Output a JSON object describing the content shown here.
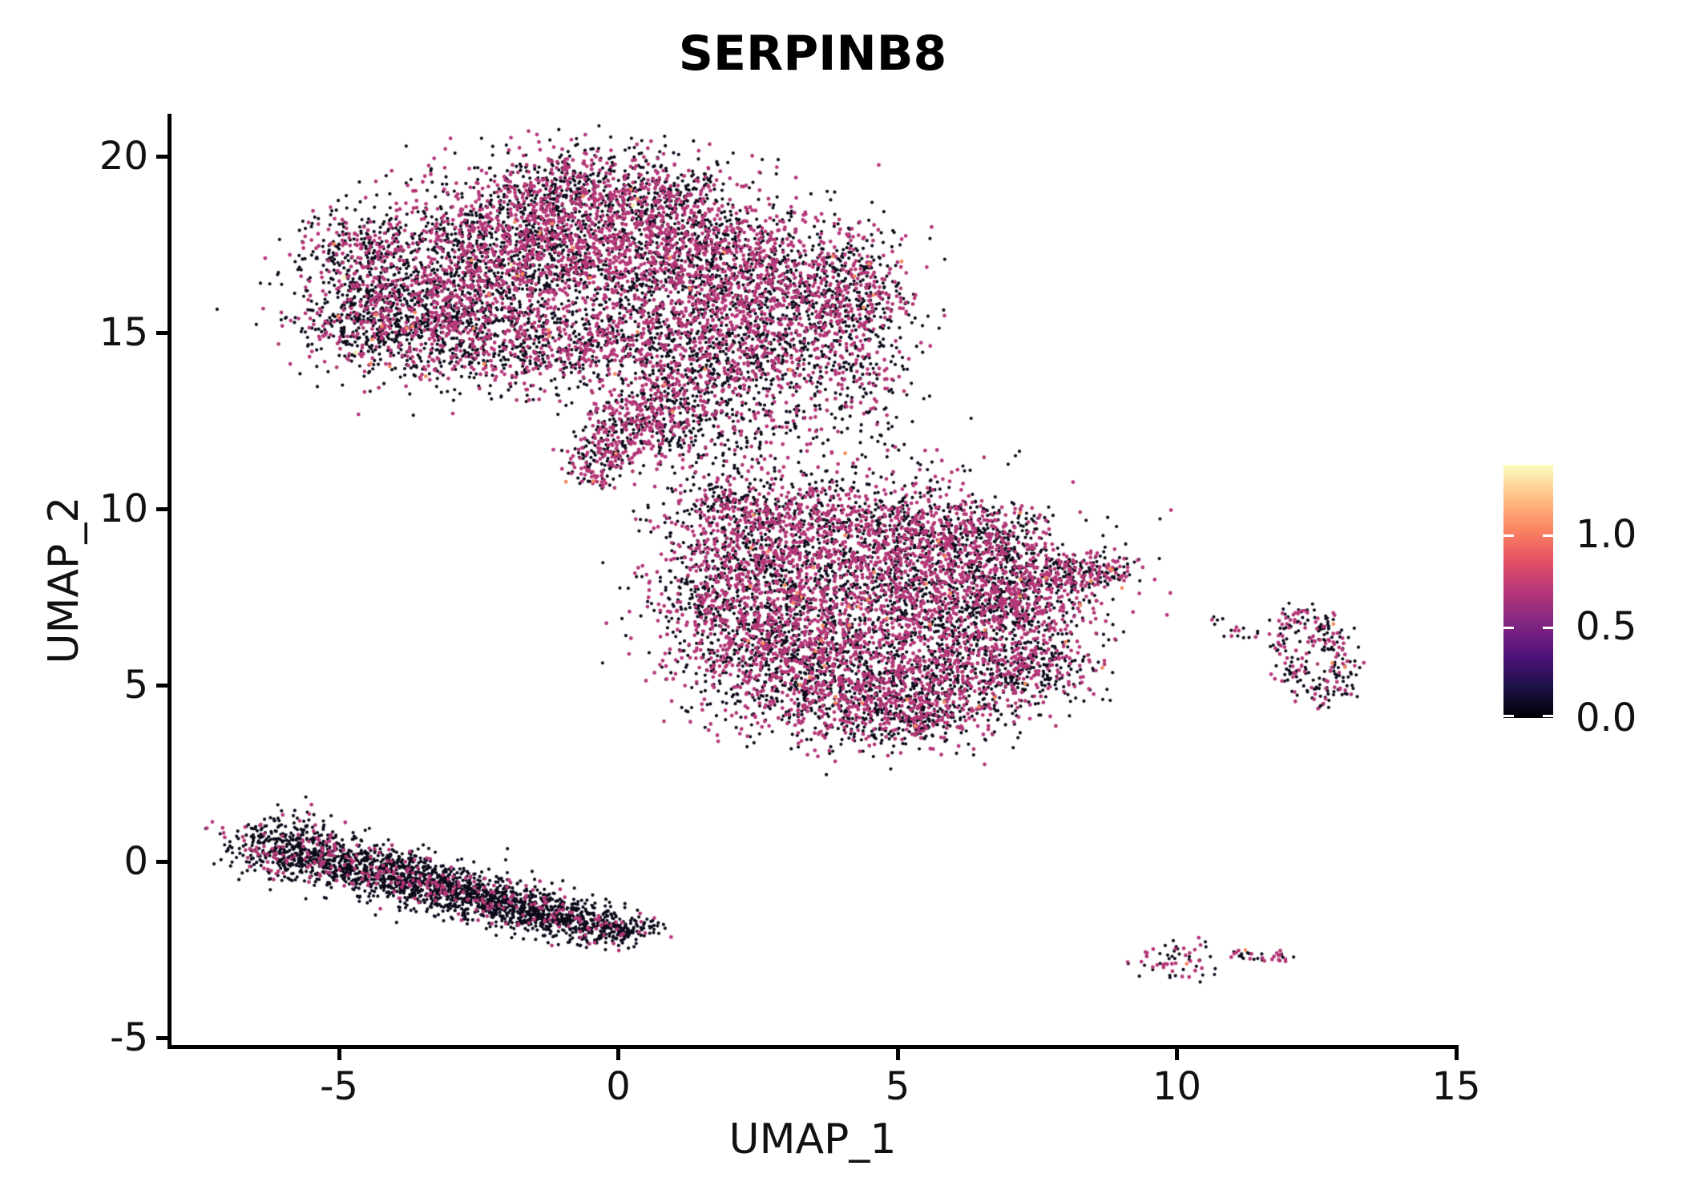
{
  "chart_data": {
    "type": "scatter",
    "title": "SERPINB8",
    "xlabel": "UMAP_1",
    "ylabel": "UMAP_2",
    "xlim": [
      -8.05,
      15.05
    ],
    "ylim": [
      -5.25,
      21.2
    ],
    "grid": false,
    "x_ticks": [
      -5,
      0,
      5,
      10,
      15
    ],
    "x_tick_labels": [
      "-5",
      "0",
      "5",
      "10",
      "15"
    ],
    "y_ticks": [
      20,
      15,
      10,
      5,
      0,
      -5
    ],
    "y_tick_labels": [
      "20",
      "15",
      "10",
      "5",
      "0",
      "-5"
    ],
    "point_colors": {
      "zero": "#0d0a1a",
      "mid": "#b53778",
      "high": "#f5895c",
      "top": "#f8f0b0"
    },
    "colorbar": {
      "colormap": "magma",
      "vmin": 0.0,
      "vmax": 1.38,
      "tick_values": [
        1.0,
        0.5,
        0.0
      ],
      "tick_labels": [
        "1.0",
        "0.5",
        "0.0"
      ],
      "gradient_stops": [
        "#000004",
        "#1d1147",
        "#51127c",
        "#822681",
        "#b63679",
        "#e65164",
        "#fb8761",
        "#fec287",
        "#fcfdbf"
      ]
    },
    "blob_format": [
      "x",
      "y",
      "sd_x",
      "sd_y",
      "n",
      "frac_mid",
      "frac_high",
      "frac_top"
    ],
    "clusters": [
      {
        "name": "upper-left-lobe",
        "blobs": [
          [
            -3.4,
            16.3,
            1.05,
            1.15,
            950,
            0.42,
            0.006,
            0.001
          ],
          [
            -1.8,
            17.5,
            1.0,
            1.05,
            950,
            0.48,
            0.006,
            0.001
          ],
          [
            -0.2,
            17.6,
            0.95,
            1.0,
            850,
            0.5,
            0.006,
            0.001
          ],
          [
            1.4,
            17.0,
            0.9,
            1.1,
            800,
            0.5,
            0.006,
            0.001
          ],
          [
            2.9,
            16.3,
            0.9,
            1.1,
            750,
            0.48,
            0.006,
            0.001
          ],
          [
            4.2,
            16.1,
            0.55,
            0.85,
            420,
            0.45,
            0.006,
            0
          ],
          [
            -4.4,
            15.4,
            0.7,
            0.75,
            420,
            0.3,
            0.01,
            0.003
          ],
          [
            -2.6,
            14.9,
            1.0,
            0.7,
            520,
            0.35,
            0.01,
            0.003
          ],
          [
            -0.6,
            14.6,
            0.9,
            0.65,
            450,
            0.42,
            0.004,
            0
          ],
          [
            1.2,
            14.9,
            0.8,
            0.7,
            420,
            0.45,
            0.004,
            0
          ],
          [
            2.8,
            14.4,
            0.7,
            0.6,
            300,
            0.42,
            0.004,
            0
          ],
          [
            -1.0,
            19.0,
            0.8,
            0.5,
            280,
            0.45,
            0.004,
            0
          ],
          [
            0.9,
            18.9,
            0.6,
            0.5,
            220,
            0.45,
            0.004,
            0
          ],
          [
            -4.6,
            17.4,
            0.5,
            0.6,
            200,
            0.35,
            0.004,
            0
          ],
          [
            -0.5,
            19.9,
            1.0,
            0.4,
            90,
            0.45,
            0,
            0
          ],
          [
            4.4,
            14.0,
            0.5,
            0.6,
            90,
            0.4,
            0,
            0
          ],
          [
            0.8,
            13.0,
            0.6,
            0.5,
            220,
            0.45,
            0.004,
            0
          ],
          [
            0.15,
            12.3,
            0.5,
            0.45,
            180,
            0.45,
            0.004,
            0
          ],
          [
            -0.25,
            11.6,
            0.35,
            0.35,
            110,
            0.45,
            0.008,
            0
          ],
          [
            -0.45,
            11.05,
            0.22,
            0.25,
            55,
            0.5,
            0.01,
            0
          ],
          [
            1.6,
            13.3,
            0.6,
            0.5,
            170,
            0.4,
            0.004,
            0
          ],
          [
            1.1,
            12.0,
            0.5,
            0.45,
            90,
            0.4,
            0,
            0
          ]
        ]
      },
      {
        "name": "transition-scatter",
        "blobs": [
          [
            2.6,
            12.4,
            0.9,
            0.75,
            130,
            0.4,
            0,
            0
          ],
          [
            3.9,
            12.9,
            0.6,
            0.6,
            70,
            0.35,
            0,
            0
          ],
          [
            2.2,
            11.2,
            0.8,
            0.5,
            60,
            0.35,
            0,
            0
          ],
          [
            4.6,
            11.3,
            0.5,
            0.9,
            40,
            0.3,
            0,
            0
          ],
          [
            5.5,
            10.6,
            0.5,
            0.7,
            35,
            0.3,
            0,
            0
          ]
        ]
      },
      {
        "name": "central-lobe",
        "blobs": [
          [
            4.3,
            7.3,
            1.5,
            1.35,
            1500,
            0.5,
            0.008,
            0.0007
          ],
          [
            2.5,
            8.4,
            0.95,
            1.0,
            700,
            0.5,
            0.008,
            0
          ],
          [
            6.1,
            8.1,
            1.1,
            1.0,
            800,
            0.5,
            0.008,
            0
          ],
          [
            2.6,
            6.0,
            0.9,
            0.9,
            550,
            0.45,
            0.008,
            0
          ],
          [
            4.0,
            5.0,
            1.0,
            0.8,
            600,
            0.45,
            0.008,
            0
          ],
          [
            5.7,
            4.9,
            0.9,
            0.7,
            500,
            0.42,
            0.008,
            0
          ],
          [
            6.9,
            6.2,
            0.8,
            0.85,
            450,
            0.45,
            0.008,
            0
          ],
          [
            5.0,
            4.0,
            0.7,
            0.4,
            260,
            0.35,
            0.008,
            0
          ],
          [
            3.3,
            9.7,
            0.8,
            0.6,
            350,
            0.5,
            0.008,
            0
          ],
          [
            5.3,
            9.5,
            0.75,
            0.55,
            320,
            0.5,
            0.008,
            0
          ],
          [
            7.3,
            7.6,
            0.6,
            0.6,
            260,
            0.45,
            0.008,
            0
          ],
          [
            8.0,
            8.2,
            0.5,
            0.35,
            140,
            0.45,
            0.01,
            0
          ],
          [
            8.65,
            8.2,
            0.3,
            0.22,
            80,
            0.5,
            0.01,
            0
          ],
          [
            1.8,
            10.1,
            0.5,
            0.5,
            130,
            0.4,
            0,
            0
          ],
          [
            1.6,
            7.5,
            0.45,
            0.8,
            160,
            0.4,
            0,
            0
          ],
          [
            6.6,
            9.3,
            0.5,
            0.45,
            170,
            0.48,
            0.008,
            0
          ],
          [
            7.5,
            5.4,
            0.5,
            0.55,
            140,
            0.4,
            0.008,
            0
          ]
        ]
      },
      {
        "name": "lower-left-ribbon",
        "blobs": [
          [
            -6.04,
            0.4,
            0.5,
            0.42,
            330,
            0.18,
            0,
            0
          ],
          [
            -5.18,
            0.06,
            0.5,
            0.36,
            340,
            0.15,
            0,
            0
          ],
          [
            -4.32,
            -0.28,
            0.5,
            0.34,
            340,
            0.13,
            0,
            0
          ],
          [
            -3.46,
            -0.62,
            0.5,
            0.33,
            340,
            0.12,
            0,
            0
          ],
          [
            -2.6,
            -0.96,
            0.5,
            0.32,
            340,
            0.12,
            0,
            0
          ],
          [
            -1.74,
            -1.3,
            0.5,
            0.3,
            330,
            0.1,
            0,
            0
          ],
          [
            -0.88,
            -1.64,
            0.5,
            0.27,
            320,
            0.1,
            0,
            0
          ],
          [
            -0.02,
            -1.95,
            0.35,
            0.22,
            180,
            0.1,
            0,
            0
          ]
        ]
      },
      {
        "name": "right-ring-islet",
        "blobs": [
          [
            12.2,
            6.8,
            0.28,
            0.18,
            55,
            0.4,
            0.02,
            0
          ],
          [
            12.75,
            6.35,
            0.2,
            0.25,
            45,
            0.4,
            0.02,
            0
          ],
          [
            12.95,
            5.5,
            0.15,
            0.3,
            40,
            0.4,
            0.02,
            0
          ],
          [
            12.6,
            4.8,
            0.25,
            0.22,
            50,
            0.42,
            0.02,
            0
          ],
          [
            12.15,
            5.35,
            0.18,
            0.28,
            40,
            0.38,
            0,
            0
          ],
          [
            11.95,
            6.15,
            0.15,
            0.2,
            25,
            0.35,
            0,
            0
          ],
          [
            11.2,
            6.55,
            0.28,
            0.12,
            14,
            0.35,
            0,
            0
          ],
          [
            10.7,
            6.8,
            0.15,
            0.1,
            5,
            0.2,
            0,
            0
          ]
        ]
      },
      {
        "name": "small-islet-left",
        "blobs": [
          [
            9.95,
            -2.8,
            0.33,
            0.28,
            60,
            0.42,
            0.03,
            0
          ]
        ]
      },
      {
        "name": "small-islet-right",
        "blobs": [
          [
            11.15,
            -2.62,
            0.14,
            0.09,
            13,
            0.45,
            0.08,
            0
          ],
          [
            11.5,
            -2.7,
            0.16,
            0.07,
            10,
            0.2,
            0,
            0
          ],
          [
            11.85,
            -2.7,
            0.13,
            0.08,
            13,
            0.55,
            0,
            0
          ]
        ]
      }
    ],
    "singletons": [
      {
        "x": 6.7,
        "y": 3.6,
        "color": "zero"
      },
      {
        "x": 10.6,
        "y": -2.7,
        "color": "zero"
      },
      {
        "x": -0.45,
        "y": 10.78,
        "color": "high"
      }
    ]
  }
}
